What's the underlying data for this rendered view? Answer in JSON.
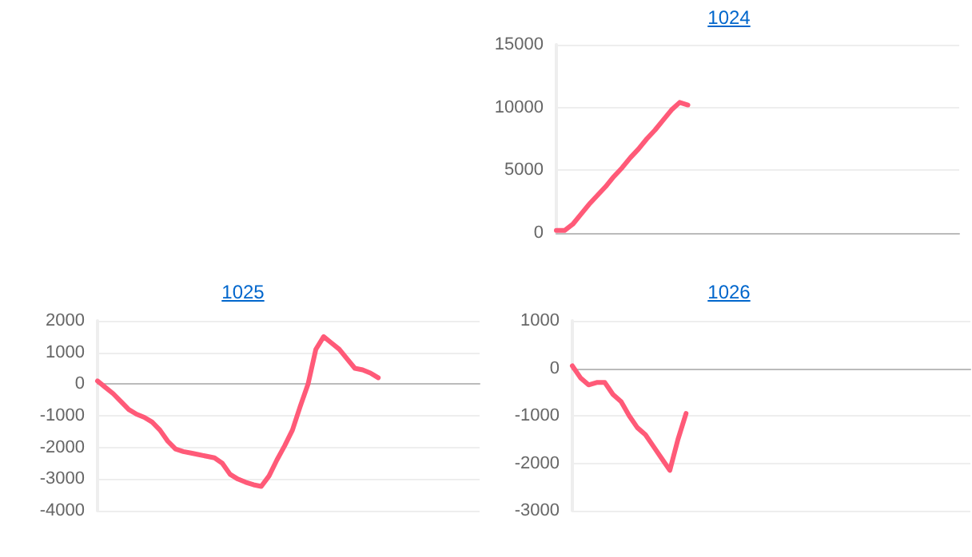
{
  "chart_data": [
    {
      "type": "line",
      "title": "1024",
      "categories": [
        null,
        null,
        null,
        null,
        null,
        null,
        null,
        null,
        null,
        null,
        null,
        null,
        null,
        null,
        null,
        null,
        null,
        null,
        null,
        null,
        null,
        null,
        null,
        null,
        null,
        null,
        null,
        null,
        null,
        null,
        null,
        null,
        null,
        null,
        null,
        null,
        null,
        null,
        null,
        null,
        null,
        null,
        null,
        null,
        null,
        null,
        null,
        null,
        null,
        null
      ],
      "values": [
        200,
        200,
        700,
        1500,
        2300,
        3000,
        3700,
        4500,
        5200,
        6000,
        6700,
        7500,
        8200,
        9000,
        9800,
        10400,
        10200,
        null,
        null,
        null,
        null,
        null,
        null,
        null,
        null,
        null,
        null,
        null,
        null,
        null,
        null,
        null,
        null,
        null,
        null,
        null,
        null,
        null,
        null,
        null,
        null,
        null,
        null,
        null,
        null,
        null,
        null,
        null,
        null,
        null
      ],
      "color": "#ff5a78",
      "ylim": [
        0,
        15000
      ],
      "yticks": [
        0,
        5000,
        10000,
        15000
      ],
      "grid": "y",
      "tick_labels": "y"
    },
    {
      "type": "line",
      "title": "1025",
      "categories": [
        null,
        null,
        null,
        null,
        null,
        null,
        null,
        null,
        null,
        null,
        null,
        null,
        null,
        null,
        null,
        null,
        null,
        null,
        null,
        null,
        null,
        null,
        null,
        null,
        null,
        null,
        null,
        null,
        null,
        null,
        null,
        null,
        null,
        null,
        null,
        null,
        null,
        null,
        null,
        null,
        null,
        null,
        null,
        null,
        null,
        null,
        null,
        null,
        null,
        null
      ],
      "values": [
        100,
        -100,
        -300,
        -550,
        -800,
        -950,
        -1050,
        -1200,
        -1450,
        -1800,
        -2050,
        -2130,
        -2180,
        -2230,
        -2280,
        -2330,
        -2500,
        -2850,
        -3000,
        -3100,
        -3180,
        -3230,
        -2900,
        -2400,
        -1950,
        -1450,
        -700,
        0,
        1100,
        1500,
        1300,
        1100,
        800,
        500,
        450,
        350,
        200,
        null,
        null,
        null,
        null,
        null,
        null,
        null,
        null,
        null,
        null,
        null,
        null,
        null
      ],
      "color": "#ff5a78",
      "ylim": [
        -4000,
        2000
      ],
      "yticks": [
        -4000,
        -3000,
        -2000,
        -1000,
        0,
        1000,
        2000
      ],
      "grid": "y",
      "tick_labels": "y"
    },
    {
      "type": "line",
      "title": "1026",
      "categories": [
        null,
        null,
        null,
        null,
        null,
        null,
        null,
        null,
        null,
        null,
        null,
        null,
        null,
        null,
        null,
        null,
        null,
        null,
        null,
        null,
        null,
        null,
        null,
        null,
        null,
        null,
        null,
        null,
        null,
        null,
        null,
        null,
        null,
        null,
        null,
        null,
        null,
        null,
        null,
        null,
        null,
        null,
        null,
        null,
        null,
        null,
        null,
        null,
        null,
        null
      ],
      "values": [
        50,
        -200,
        -350,
        -300,
        -300,
        -550,
        -700,
        -1000,
        -1250,
        -1400,
        -1650,
        -1900,
        -2150,
        -1500,
        -950,
        null,
        null,
        null,
        null,
        null,
        null,
        null,
        null,
        null,
        null,
        null,
        null,
        null,
        null,
        null,
        null,
        null,
        null,
        null,
        null,
        null,
        null,
        null,
        null,
        null,
        null,
        null,
        null,
        null,
        null,
        null,
        null,
        null,
        null,
        null
      ],
      "color": "#ff5a78",
      "ylim": [
        -3000,
        1000
      ],
      "yticks": [
        -3000,
        -2000,
        -1000,
        0,
        1000
      ],
      "grid": "y",
      "tick_labels": "y"
    }
  ]
}
